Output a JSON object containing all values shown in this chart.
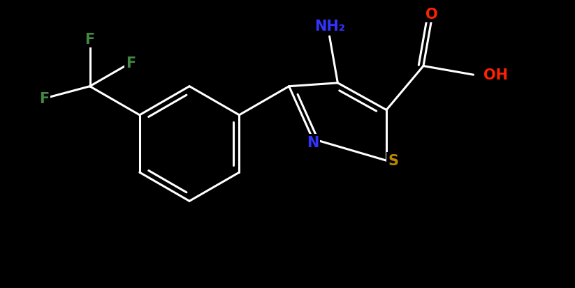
{
  "background_color": "#000000",
  "bond_color": "#ffffff",
  "bond_width": 2.2,
  "atom_colors": {
    "C": "#ffffff",
    "N": "#3333ff",
    "O": "#ff2200",
    "S": "#bb8800",
    "F": "#448844",
    "H": "#ffffff"
  },
  "font_size": 15,
  "figsize": [
    8.23,
    4.14
  ],
  "dpi": 100,
  "xlim": [
    0.0,
    8.5
  ],
  "ylim": [
    0.5,
    4.5
  ]
}
